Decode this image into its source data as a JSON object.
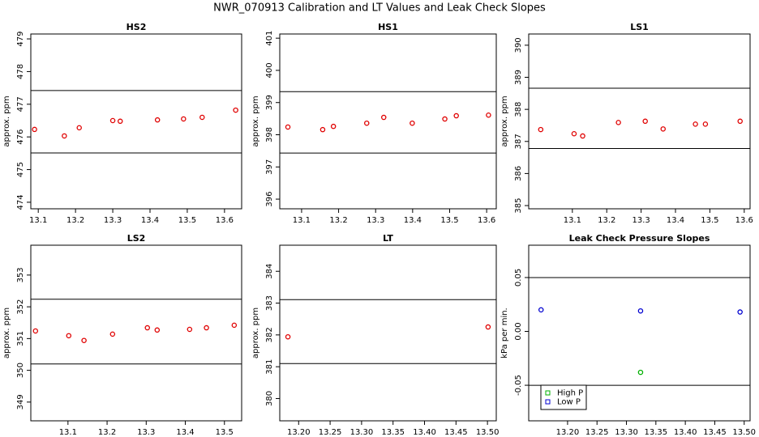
{
  "title": "NWR_070913  Calibration and LT Values and Leak Check Slopes",
  "chart_data": [
    {
      "type": "scatter",
      "title": "HS2",
      "ylabel": "approx. ppm",
      "color": "#e00000",
      "x": [
        13.09,
        13.17,
        13.21,
        13.3,
        13.32,
        13.42,
        13.49,
        13.54,
        13.63
      ],
      "values": [
        476.23,
        476.03,
        476.28,
        476.5,
        476.48,
        476.52,
        476.55,
        476.6,
        476.82
      ],
      "hlines": [
        477.42,
        475.51
      ],
      "xlim": [
        13.08,
        13.646
      ],
      "ylim": [
        473.8,
        479.15
      ],
      "xticks": [
        13.1,
        13.2,
        13.3,
        13.4,
        13.5,
        13.6
      ],
      "yticks": [
        474,
        475,
        476,
        477,
        478,
        479
      ]
    },
    {
      "type": "scatter",
      "title": "HS1",
      "ylabel": "approx. ppm",
      "color": "#e00000",
      "x": [
        13.063,
        13.157,
        13.186,
        13.276,
        13.322,
        13.399,
        13.487,
        13.518,
        13.605
      ],
      "values": [
        398.24,
        398.16,
        398.26,
        398.36,
        398.54,
        398.36,
        398.49,
        398.59,
        398.61
      ],
      "hlines": [
        399.34,
        397.43
      ],
      "xlim": [
        13.041,
        13.626
      ],
      "ylim": [
        395.7,
        401.13
      ],
      "xticks": [
        13.1,
        13.2,
        13.3,
        13.4,
        13.5,
        13.6
      ],
      "yticks": [
        396,
        397,
        398,
        399,
        400,
        401
      ]
    },
    {
      "type": "scatter",
      "title": "LS1",
      "ylabel": "approx. ppm",
      "color": "#e00000",
      "x": [
        13.008,
        13.105,
        13.13,
        13.234,
        13.312,
        13.364,
        13.458,
        13.487,
        13.588
      ],
      "values": [
        387.37,
        387.24,
        387.17,
        387.59,
        387.63,
        387.39,
        387.54,
        387.54,
        387.63
      ],
      "hlines": [
        388.66,
        386.78
      ],
      "xlim": [
        12.973,
        13.617
      ],
      "ylim": [
        384.9,
        390.35
      ],
      "xticks": [
        13.1,
        13.2,
        13.3,
        13.4,
        13.5,
        13.6
      ],
      "yticks": [
        385,
        386,
        387,
        388,
        389,
        390
      ]
    },
    {
      "type": "scatter",
      "title": "LS2",
      "ylabel": "approx. ppm",
      "color": "#e00000",
      "x": [
        13.017,
        13.102,
        13.141,
        13.214,
        13.303,
        13.328,
        13.411,
        13.454,
        13.525
      ],
      "values": [
        351.24,
        351.09,
        350.94,
        351.14,
        351.34,
        351.27,
        351.29,
        351.34,
        351.42
      ],
      "hlines": [
        352.24,
        350.2
      ],
      "xlim": [
        13.005,
        13.544
      ],
      "ylim": [
        348.41,
        353.94
      ],
      "xticks": [
        13.1,
        13.2,
        13.3,
        13.4,
        13.5
      ],
      "yticks": [
        349,
        350,
        351,
        352,
        353
      ]
    },
    {
      "type": "scatter",
      "title": "LT",
      "ylabel": "approx. ppm",
      "color": "#e00000",
      "x": [
        13.183,
        13.501
      ],
      "values": [
        381.94,
        382.25
      ],
      "hlines": [
        383.11,
        381.1
      ],
      "xlim": [
        13.17,
        13.514
      ],
      "ylim": [
        379.3,
        384.82
      ],
      "xticks": [
        {
          "value": 13.2,
          "label": "13.20"
        },
        13.25,
        {
          "value": 13.3,
          "label": "13.30"
        },
        13.35,
        {
          "value": 13.4,
          "label": "13.40"
        },
        13.45,
        {
          "value": 13.5,
          "label": "13.50"
        }
      ],
      "yticks": [
        380,
        381,
        382,
        383,
        384
      ]
    },
    {
      "type": "scatter",
      "title": "Leak Check Pressure Slopes",
      "ylabel": "kPa per min.",
      "series": [
        {
          "name": "High P",
          "color": "#00b000",
          "x": [
            13.324
          ],
          "values": [
            -0.038
          ]
        },
        {
          "name": "Low P",
          "color": "#0000d0",
          "x": [
            13.155,
            13.324,
            13.493
          ],
          "values": [
            0.02,
            0.019,
            0.018
          ]
        }
      ],
      "hlines": [
        0.05,
        -0.05
      ],
      "legend": "bottom-left",
      "xlim": [
        13.134,
        13.51
      ],
      "ylim": [
        -0.083,
        0.08
      ],
      "xticks": [
        {
          "value": 13.2,
          "label": "13.20"
        },
        13.25,
        {
          "value": 13.3,
          "label": "13.30"
        },
        13.35,
        {
          "value": 13.4,
          "label": "13.40"
        },
        13.45,
        {
          "value": 13.5,
          "label": "13.50"
        }
      ],
      "yticks": [
        -0.05,
        {
          "value": 0,
          "label": "0.00"
        },
        0.05
      ]
    }
  ]
}
